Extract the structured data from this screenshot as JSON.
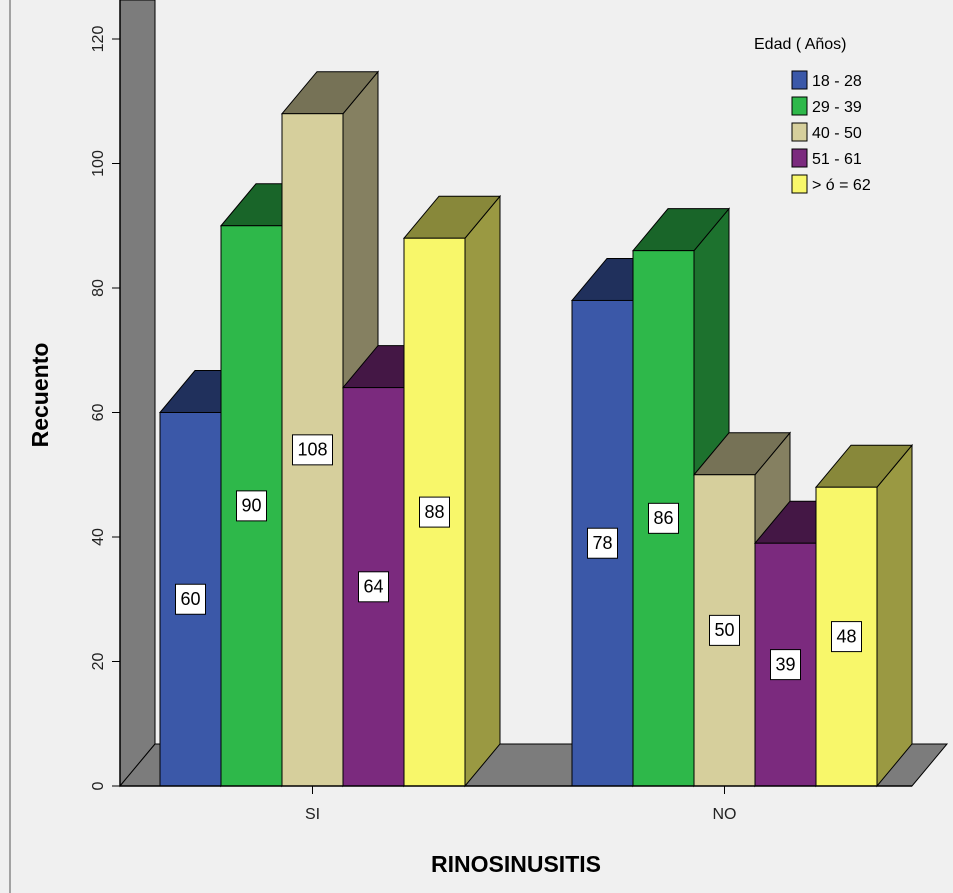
{
  "chart_data": {
    "type": "bar",
    "xlabel": "RINOSINUSITIS",
    "ylabel": "Recuento",
    "categories": [
      "SI",
      "NO"
    ],
    "ylim": [
      0,
      120
    ],
    "yticks": [
      0,
      20,
      40,
      60,
      80,
      100,
      120
    ],
    "legend_title": "Edad ( Años)",
    "legend_position": "top-right",
    "series": [
      {
        "name": "18 - 28",
        "color": "#3b58a8",
        "values": [
          60,
          78
        ]
      },
      {
        "name": "29 - 39",
        "color": "#2eb84a",
        "values": [
          90,
          86
        ]
      },
      {
        "name": "40 - 50",
        "color": "#d6cf9c",
        "values": [
          108,
          50
        ]
      },
      {
        "name": "51 - 61",
        "color": "#7b2a7e",
        "values": [
          64,
          39
        ]
      },
      {
        "name": "> ó = 62",
        "color": "#f8f76a",
        "values": [
          88,
          48
        ]
      }
    ],
    "data_labels": true,
    "style": "3d-clustered"
  }
}
